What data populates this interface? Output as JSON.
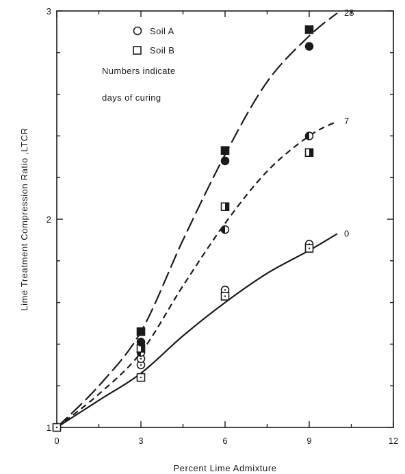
{
  "chart_data": {
    "type": "scatter",
    "xlabel": "Percent Lime Admixture",
    "ylabel": "Lime Treatment Compression  Ratio ,LTCR",
    "xlim": [
      0,
      12
    ],
    "ylim": [
      1,
      3
    ],
    "xticks": [
      0,
      3,
      6,
      9,
      12
    ],
    "yticks": [
      1,
      2,
      3
    ],
    "grid": false,
    "legend": {
      "placement": "top-left",
      "entries": [
        {
          "marker": "circle",
          "label": "Soil  A"
        },
        {
          "marker": "square",
          "label": "Soil  B"
        }
      ],
      "note_line1": "Numbers indicate",
      "note_line2": "days of curing"
    },
    "curves": [
      {
        "label": "0",
        "style": "solid",
        "x": [
          0,
          1.5,
          3,
          4.5,
          6,
          7.5,
          9,
          10
        ],
        "y": [
          1.0,
          1.13,
          1.26,
          1.44,
          1.6,
          1.74,
          1.85,
          1.93
        ]
      },
      {
        "label": "7",
        "style": "dashed",
        "x": [
          0,
          1.5,
          3,
          4.5,
          6,
          7.5,
          9,
          10
        ],
        "y": [
          1.0,
          1.16,
          1.36,
          1.68,
          1.98,
          2.23,
          2.4,
          2.47
        ]
      },
      {
        "label": "28",
        "style": "longdash",
        "x": [
          0,
          1.5,
          3,
          4.5,
          6,
          7.5,
          9,
          10
        ],
        "y": [
          1.0,
          1.2,
          1.46,
          1.9,
          2.31,
          2.66,
          2.88,
          2.99
        ]
      }
    ],
    "series": [
      {
        "soil": "A",
        "days": "0",
        "marker": "circle",
        "fill": "open",
        "x": [
          0,
          3,
          3,
          6,
          9
        ],
        "y": [
          1.0,
          1.3,
          1.33,
          1.66,
          1.88
        ]
      },
      {
        "soil": "B",
        "days": "0",
        "marker": "square",
        "fill": "open",
        "x": [
          0,
          3,
          6,
          9
        ],
        "y": [
          1.0,
          1.24,
          1.63,
          1.86
        ]
      },
      {
        "soil": "A",
        "days": "7",
        "marker": "circle",
        "fill": "half",
        "x": [
          3,
          6,
          9
        ],
        "y": [
          1.36,
          1.95,
          2.4
        ]
      },
      {
        "soil": "B",
        "days": "7",
        "marker": "square",
        "fill": "half",
        "x": [
          3,
          6,
          9
        ],
        "y": [
          1.38,
          2.06,
          2.32
        ]
      },
      {
        "soil": "A",
        "days": "28",
        "marker": "circle",
        "fill": "full",
        "x": [
          3,
          6,
          9
        ],
        "y": [
          1.41,
          2.28,
          2.83
        ]
      },
      {
        "soil": "B",
        "days": "28",
        "marker": "square",
        "fill": "full",
        "x": [
          3,
          6,
          9
        ],
        "y": [
          1.46,
          2.33,
          2.91
        ]
      }
    ]
  },
  "colors": {
    "ink": "#1a1a1a",
    "background": "#ffffff"
  }
}
